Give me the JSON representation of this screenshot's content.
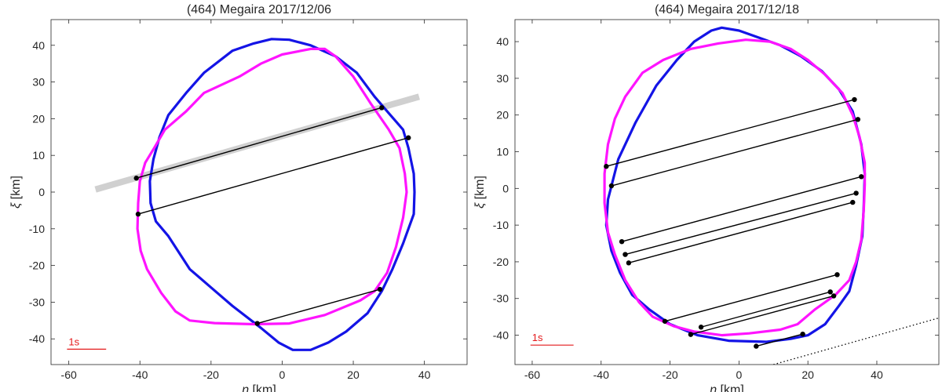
{
  "chart_data": [
    {
      "type": "line",
      "title": "(464) Megaira     2017/12/06",
      "xlabel_symbol": "η",
      "xlabel_unit": " [km]",
      "ylabel_symbol": "ξ",
      "ylabel_unit": " [km]",
      "xlim": [
        -65,
        52
      ],
      "ylim": [
        -47,
        47
      ],
      "xticks": [
        -60,
        -40,
        -20,
        0,
        20,
        40
      ],
      "yticks": [
        -40,
        -30,
        -20,
        -10,
        0,
        10,
        20,
        30,
        40
      ],
      "grid": false,
      "scale_bar": {
        "label": "1s",
        "color": "#e41a1c",
        "x_start": -60.5,
        "x_end": -49.5,
        "y": -42.8
      },
      "series": [
        {
          "color": "#1414e6",
          "closed": true,
          "points": [
            [
              -3,
              41.7
            ],
            [
              -8,
              40.5
            ],
            [
              -14,
              38.5
            ],
            [
              -22,
              32.5
            ],
            [
              -27,
              27
            ],
            [
              -32,
              21
            ],
            [
              -34.5,
              15
            ],
            [
              -36.2,
              9
            ],
            [
              -37.2,
              3
            ],
            [
              -37,
              -3
            ],
            [
              -35.5,
              -8
            ],
            [
              -32,
              -12
            ],
            [
              -26,
              -21
            ],
            [
              -20,
              -26
            ],
            [
              -14,
              -31
            ],
            [
              -6,
              -37
            ],
            [
              -1,
              -41
            ],
            [
              3,
              -43
            ],
            [
              8,
              -43
            ],
            [
              13,
              -41
            ],
            [
              18,
              -38
            ],
            [
              24,
              -33
            ],
            [
              28,
              -27
            ],
            [
              31,
              -21
            ],
            [
              34,
              -14
            ],
            [
              37,
              -6
            ],
            [
              37.2,
              0
            ],
            [
              37,
              5
            ],
            [
              35.5,
              12
            ],
            [
              34,
              17
            ],
            [
              30,
              21.5
            ],
            [
              26,
              26
            ],
            [
              21,
              32.5
            ],
            [
              15,
              37
            ],
            [
              8,
              40
            ],
            [
              2,
              41.5
            ],
            [
              -3,
              41.7
            ]
          ]
        },
        {
          "color": "#ff14ff",
          "closed": true,
          "points": [
            [
              12,
              39
            ],
            [
              8,
              39
            ],
            [
              0,
              37.5
            ],
            [
              -6,
              35
            ],
            [
              -12,
              31.5
            ],
            [
              -22,
              27
            ],
            [
              -27,
              22
            ],
            [
              -33,
              17
            ],
            [
              -36,
              12
            ],
            [
              -38.5,
              8
            ],
            [
              -40,
              3
            ],
            [
              -40.5,
              -3
            ],
            [
              -40.7,
              -10
            ],
            [
              -39.8,
              -16
            ],
            [
              -38,
              -21
            ],
            [
              -34,
              -27.5
            ],
            [
              -30,
              -32.5
            ],
            [
              -26,
              -35
            ],
            [
              -19,
              -35.7
            ],
            [
              -8,
              -36
            ],
            [
              2,
              -35.8
            ],
            [
              12,
              -33.5
            ],
            [
              22,
              -29.5
            ],
            [
              26,
              -27
            ],
            [
              29.5,
              -22
            ],
            [
              32,
              -15
            ],
            [
              34,
              -7
            ],
            [
              35,
              0
            ],
            [
              34.5,
              5
            ],
            [
              33,
              12
            ],
            [
              30,
              17
            ],
            [
              25,
              24
            ],
            [
              20,
              31.5
            ],
            [
              15,
              37
            ],
            [
              12,
              39
            ]
          ]
        }
      ],
      "chords": [
        {
          "start": [
            -41,
            3.8
          ],
          "end": [
            28,
            23
          ],
          "band": {
            "start": [
              -52.5,
              0.7
            ],
            "end": [
              38.5,
              26
            ],
            "width_km": 1.8
          }
        },
        {
          "start": [
            -40.5,
            -6
          ],
          "end": [
            35.5,
            14.8
          ]
        },
        {
          "start": [
            -7,
            -35.8
          ],
          "end": [
            27.5,
            -26.5
          ]
        }
      ]
    },
    {
      "type": "line",
      "title": "(464) Megaira     2017/12/18",
      "xlabel_symbol": "η",
      "xlabel_unit": " [km]",
      "ylabel_symbol": "ξ",
      "ylabel_unit": " [km]",
      "xlim": [
        -65,
        58
      ],
      "ylim": [
        -48,
        46
      ],
      "xticks": [
        -60,
        -40,
        -20,
        0,
        20,
        40
      ],
      "yticks": [
        -40,
        -30,
        -20,
        -10,
        0,
        10,
        20,
        30,
        40
      ],
      "grid": false,
      "scale_bar": {
        "label": "1s",
        "color": "#e41a1c",
        "x_start": -60.5,
        "x_end": -48,
        "y": -42.7
      },
      "series": [
        {
          "color": "#1414e6",
          "closed": true,
          "points": [
            [
              -5,
              43.8
            ],
            [
              -8,
              43
            ],
            [
              -13,
              40
            ],
            [
              -18,
              35
            ],
            [
              -24,
              28
            ],
            [
              -30,
              18
            ],
            [
              -35,
              8
            ],
            [
              -38,
              -3
            ],
            [
              -38.5,
              -10
            ],
            [
              -37,
              -17
            ],
            [
              -34.5,
              -23
            ],
            [
              -31,
              -29
            ],
            [
              -26,
              -33
            ],
            [
              -20,
              -37
            ],
            [
              -12,
              -40
            ],
            [
              -3,
              -41.5
            ],
            [
              8,
              -41.8
            ],
            [
              15,
              -41
            ],
            [
              20,
              -40
            ],
            [
              25,
              -37
            ],
            [
              29,
              -32
            ],
            [
              32,
              -28
            ],
            [
              34,
              -21
            ],
            [
              35.8,
              -13
            ],
            [
              36.2,
              -5
            ],
            [
              36.5,
              4
            ],
            [
              35.5,
              12
            ],
            [
              33,
              21
            ],
            [
              29,
              27
            ],
            [
              24,
              32
            ],
            [
              18,
              36
            ],
            [
              12,
              39
            ],
            [
              6,
              41
            ],
            [
              0,
              43
            ],
            [
              -5,
              43.8
            ]
          ]
        },
        {
          "color": "#ff14ff",
          "closed": true,
          "points": [
            [
              2,
              40.5
            ],
            [
              -6,
              39.5
            ],
            [
              -14,
              38
            ],
            [
              -22,
              35
            ],
            [
              -28,
              31.5
            ],
            [
              -33,
              25
            ],
            [
              -36,
              19
            ],
            [
              -38,
              12
            ],
            [
              -39,
              4
            ],
            [
              -39,
              -4
            ],
            [
              -38,
              -12
            ],
            [
              -36,
              -18
            ],
            [
              -33,
              -25
            ],
            [
              -29,
              -31
            ],
            [
              -25,
              -35
            ],
            [
              -19,
              -37.5
            ],
            [
              -13,
              -39
            ],
            [
              -5,
              -40
            ],
            [
              3,
              -39.5
            ],
            [
              12,
              -38.5
            ],
            [
              17,
              -37
            ],
            [
              22,
              -33
            ],
            [
              28,
              -29
            ],
            [
              32,
              -25
            ],
            [
              34,
              -20
            ],
            [
              35.5,
              -14
            ],
            [
              36.2,
              -6
            ],
            [
              36.5,
              1
            ],
            [
              36.5,
              7
            ],
            [
              35,
              14
            ],
            [
              33,
              20
            ],
            [
              30,
              26
            ],
            [
              25,
              31
            ],
            [
              20,
              35
            ],
            [
              15,
              38
            ],
            [
              9,
              40
            ],
            [
              2,
              40.5
            ]
          ]
        }
      ],
      "chords": [
        {
          "start": [
            -38.5,
            6
          ],
          "end": [
            33.5,
            24.2
          ]
        },
        {
          "start": [
            -37,
            0.7
          ],
          "end": [
            34.5,
            18.8
          ]
        },
        {
          "start": [
            -34,
            -14.5
          ],
          "end": [
            35.5,
            3.2
          ]
        },
        {
          "start": [
            -33,
            -18
          ],
          "end": [
            34,
            -1.3
          ]
        },
        {
          "start": [
            -32,
            -20.3
          ],
          "end": [
            33,
            -3.8
          ]
        },
        {
          "start": [
            -21.5,
            -36.2
          ],
          "end": [
            28.5,
            -23.5
          ]
        },
        {
          "start": [
            -11,
            -37.8
          ],
          "end": [
            26.5,
            -28.2
          ]
        },
        {
          "start": [
            -14,
            -39.8
          ],
          "end": [
            27.5,
            -29.3
          ]
        },
        {
          "start": [
            5,
            -43
          ],
          "end": [
            18.5,
            -39.7
          ]
        }
      ],
      "dotted_lines": [
        {
          "start": [
            10,
            -48
          ],
          "end": [
            58,
            -35.3
          ]
        }
      ]
    }
  ]
}
